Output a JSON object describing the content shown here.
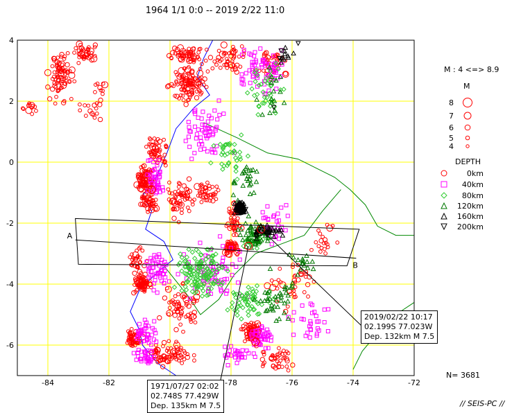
{
  "title": "1964 1/1 0:0 -- 2019 2/22 11:0",
  "axes": {
    "x_ticks": [
      "-84",
      "-82",
      "-80",
      "-78",
      "-76",
      "-74",
      "-72"
    ],
    "y_ticks": [
      "4",
      "2",
      "0",
      "-2",
      "-4",
      "-6"
    ]
  },
  "legend": {
    "magnitude_range": "M : 4 <=> 8.9",
    "magnitude_title": "M",
    "magnitudes": [
      "8",
      "7",
      "6",
      "5",
      "4"
    ],
    "depth_title": "DEPTH",
    "depths": [
      "0km",
      "40km",
      "80km",
      "120km",
      "160km",
      "200km"
    ],
    "depth_colors": [
      "#ff0000",
      "#ff00ff",
      "#33cc33",
      "#007700",
      "#000000",
      "#000000"
    ]
  },
  "section": {
    "start_label": "A",
    "end_label": "B"
  },
  "events": [
    {
      "line1": "2019/02/22 10:17",
      "line2": "02.199S  77.023W",
      "line3": "Dep. 132km    M 7.5"
    },
    {
      "line1": "1971/07/27 02:02",
      "line2": "02.748S  77.429W",
      "line3": "Dep. 135km    M 7.5"
    }
  ],
  "count": "N= 3681",
  "credit": "// SEIS-PC //"
}
